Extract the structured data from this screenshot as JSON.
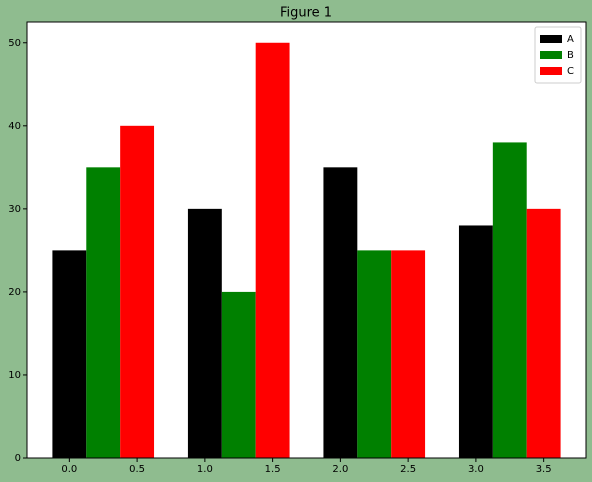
{
  "chart_data": {
    "type": "bar",
    "title": "Figure 1",
    "series": [
      {
        "name": "A",
        "color": "#000000",
        "x": [
          0,
          1,
          2,
          3
        ],
        "values": [
          25,
          30,
          35,
          28
        ]
      },
      {
        "name": "B",
        "color": "#008000",
        "x": [
          0.25,
          1.25,
          2.25,
          3.25
        ],
        "values": [
          35,
          20,
          25,
          38
        ]
      },
      {
        "name": "C",
        "color": "#ff0000",
        "x": [
          0.5,
          1.5,
          2.5,
          3.5
        ],
        "values": [
          40,
          50,
          25,
          30
        ]
      }
    ],
    "xlim": [
      -0.3125,
      3.8125
    ],
    "xticks": [
      {
        "value": 0,
        "label": "0.0"
      },
      0.5,
      {
        "value": 1,
        "label": "1.0"
      },
      1.5,
      {
        "value": 2,
        "label": "2.0"
      },
      2.5,
      {
        "value": 3,
        "label": "3.0"
      },
      3.5
    ],
    "ylim": [
      0,
      52.5
    ],
    "yticks": [
      0,
      10,
      20,
      30,
      40,
      50
    ],
    "legend": "upper right"
  }
}
